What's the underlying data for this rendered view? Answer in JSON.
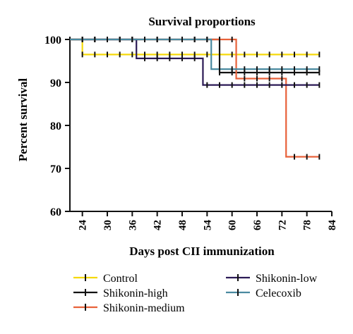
{
  "chart_data": {
    "type": "line",
    "subtype": "kaplan-meier survival step plot",
    "title": "Survival proportions",
    "xlabel": "Days post CII immunization",
    "ylabel": "Percent survival",
    "xlim": [
      21,
      84
    ],
    "ylim": [
      60,
      100
    ],
    "xticks": [
      24,
      30,
      36,
      42,
      48,
      54,
      60,
      66,
      72,
      78,
      84
    ],
    "yticks": [
      60,
      70,
      80,
      90,
      100
    ],
    "grid": false,
    "legend_position": "bottom",
    "censor_ticks": [
      24,
      27,
      30,
      33,
      36,
      39,
      42,
      45,
      48,
      51,
      54,
      57,
      60,
      63,
      66,
      69,
      72,
      75,
      78,
      81
    ],
    "end_day": 81,
    "series": [
      {
        "name": "Control",
        "color": "#f5d90a",
        "steps": [
          [
            21,
            100
          ],
          [
            24,
            96.5
          ]
        ]
      },
      {
        "name": "Shikonin-high",
        "color": "#111111",
        "steps": [
          [
            21,
            100
          ],
          [
            57,
            92.3
          ]
        ]
      },
      {
        "name": "Shikonin-medium",
        "color": "#e8623a",
        "steps": [
          [
            21,
            100
          ],
          [
            61,
            90.9
          ],
          [
            73,
            72.7
          ]
        ]
      },
      {
        "name": "Shikonin-low",
        "color": "#2b1a55",
        "steps": [
          [
            21,
            100
          ],
          [
            37,
            95.6
          ],
          [
            53,
            89.4
          ]
        ]
      },
      {
        "name": "Celecoxib",
        "color": "#4a8aa0",
        "steps": [
          [
            21,
            100
          ],
          [
            55,
            93.1
          ]
        ]
      }
    ]
  }
}
